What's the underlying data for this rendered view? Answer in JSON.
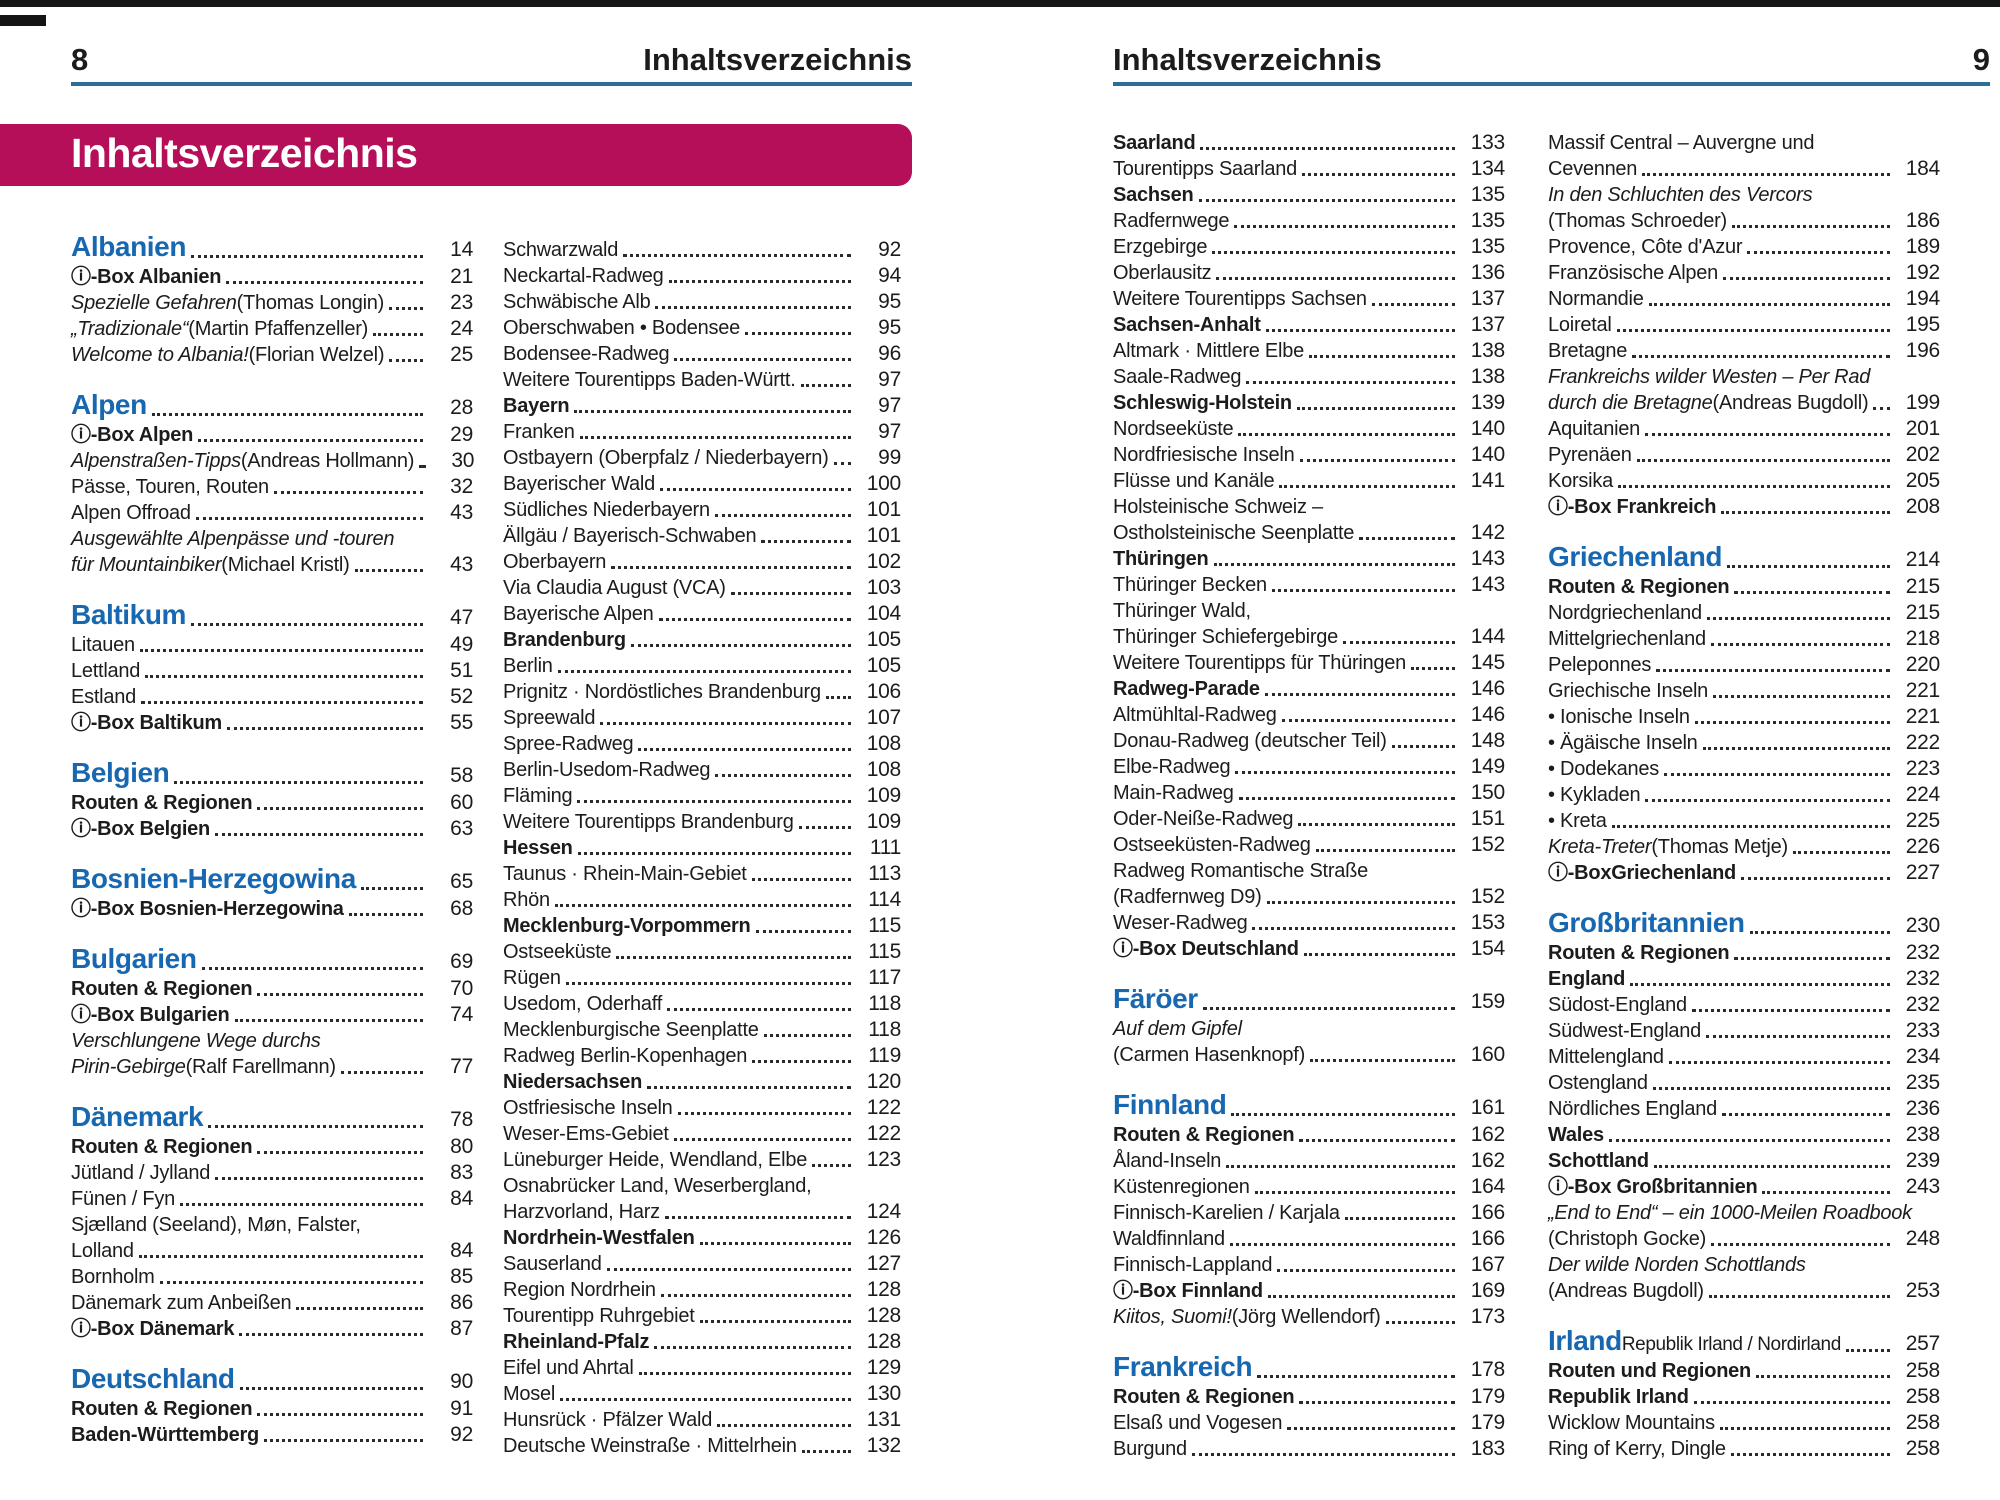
{
  "colors": {
    "banner_bg": "#b60f5a",
    "heading_blue": "#1767b1",
    "rule_blue": "#2e6d94",
    "text": "#1c1c1c"
  },
  "page_left": {
    "page_number": "8",
    "running_header": "Inhaltsverzeichnis",
    "banner_title": "Inhaltsverzeichnis",
    "columns": [
      [
        {
          "s": "h",
          "t": "Albanien",
          "p": "14"
        },
        {
          "s": "b",
          "t": "ⓘ-Box Albanien",
          "p": "21"
        },
        {
          "s": "i",
          "t": "Spezielle Gefahren",
          "t2": " (Thomas Longin)",
          "p": "23"
        },
        {
          "s": "i",
          "t": "„Tradizionale“",
          "t2": " (Martin Pfaffenzeller)",
          "p": "24"
        },
        {
          "s": "i",
          "t": "Welcome to Albania!",
          "t2": " (Florian Welzel)",
          "p": "25"
        },
        {
          "s": "h",
          "t": "Alpen",
          "p": "28"
        },
        {
          "s": "b",
          "t": "ⓘ-Box Alpen",
          "p": "29"
        },
        {
          "s": "i",
          "t": "Alpenstraßen-Tipps",
          "t2": " (Andreas Hollmann)",
          "p": "30"
        },
        {
          "s": "n",
          "t": "Pässe, Touren, Routen",
          "p": "32"
        },
        {
          "s": "n",
          "t": "Alpen Offroad",
          "p": "43"
        },
        {
          "s": "i",
          "t": "Ausgewählte Alpenpässe und -touren",
          "p": null
        },
        {
          "s": "i",
          "t": "für Mountainbiker",
          "t2": " (Michael Kristl)",
          "p": "43"
        },
        {
          "s": "h",
          "t": "Baltikum",
          "p": "47"
        },
        {
          "s": "n",
          "t": "Litauen",
          "p": "49"
        },
        {
          "s": "n",
          "t": "Lettland",
          "p": "51"
        },
        {
          "s": "n",
          "t": "Estland",
          "p": "52"
        },
        {
          "s": "b",
          "t": "ⓘ-Box Baltikum",
          "p": "55"
        },
        {
          "s": "h",
          "t": "Belgien",
          "p": "58"
        },
        {
          "s": "b",
          "t": "Routen & Regionen",
          "p": "60"
        },
        {
          "s": "b",
          "t": "ⓘ-Box Belgien",
          "p": "63"
        },
        {
          "s": "h",
          "t": "Bosnien-Herzegowina",
          "p": "65"
        },
        {
          "s": "b",
          "t": "ⓘ-Box Bosnien-Herzegowina",
          "p": "68"
        },
        {
          "s": "h",
          "t": "Bulgarien",
          "p": "69"
        },
        {
          "s": "b",
          "t": "Routen & Regionen",
          "p": "70"
        },
        {
          "s": "b",
          "t": "ⓘ-Box Bulgarien",
          "p": "74"
        },
        {
          "s": "i",
          "t": "Verschlungene Wege durchs",
          "p": null
        },
        {
          "s": "i",
          "t": "Pirin-Gebirge",
          "t2": " (Ralf Farellmann)",
          "p": "77"
        },
        {
          "s": "h",
          "t": "Dänemark",
          "p": "78"
        },
        {
          "s": "b",
          "t": "Routen & Regionen",
          "p": "80"
        },
        {
          "s": "n",
          "t": "Jütland / Jylland",
          "p": "83"
        },
        {
          "s": "n",
          "t": "Fünen / Fyn",
          "p": "84"
        },
        {
          "s": "n",
          "t": "Sjælland (Seeland), Møn, Falster,",
          "p": null
        },
        {
          "s": "n",
          "t": "Lolland",
          "p": "84"
        },
        {
          "s": "n",
          "t": "Bornholm",
          "p": "85"
        },
        {
          "s": "n",
          "t": "Dänemark zum Anbeißen",
          "p": "86"
        },
        {
          "s": "b",
          "t": "ⓘ-Box Dänemark",
          "p": "87"
        },
        {
          "s": "h",
          "t": "Deutschland",
          "p": "90"
        },
        {
          "s": "b",
          "t": "Routen & Regionen",
          "p": "91"
        },
        {
          "s": "b",
          "t": "Baden-Württemberg",
          "p": "92"
        }
      ],
      [
        {
          "s": "n",
          "t": "Schwarzwald",
          "p": "92"
        },
        {
          "s": "n",
          "t": "Neckartal-Radweg",
          "p": "94"
        },
        {
          "s": "n",
          "t": "Schwäbische Alb",
          "p": "95"
        },
        {
          "s": "n",
          "t": "Oberschwaben • Bodensee",
          "p": "95"
        },
        {
          "s": "n",
          "t": "Bodensee-Radweg",
          "p": "96"
        },
        {
          "s": "n",
          "t": "Weitere Tourentipps Baden-Württ.",
          "p": "97"
        },
        {
          "s": "b",
          "t": "Bayern",
          "p": "97"
        },
        {
          "s": "n",
          "t": "Franken",
          "p": "97"
        },
        {
          "s": "n",
          "t": "Ostbayern (Oberpfalz / Niederbayern)",
          "p": "99"
        },
        {
          "s": "n",
          "t": "Bayerischer Wald",
          "p": "100"
        },
        {
          "s": "n",
          "t": "Südliches Niederbayern",
          "p": "101"
        },
        {
          "s": "n",
          "t": "Ällgäu / Bayerisch-Schwaben",
          "p": "101"
        },
        {
          "s": "n",
          "t": "Oberbayern",
          "p": "102"
        },
        {
          "s": "n",
          "t": "Via Claudia August (VCA)",
          "p": "103"
        },
        {
          "s": "n",
          "t": "Bayerische Alpen",
          "p": "104"
        },
        {
          "s": "b",
          "t": "Brandenburg",
          "p": "105"
        },
        {
          "s": "n",
          "t": "Berlin",
          "p": "105"
        },
        {
          "s": "n",
          "t": "Prignitz · Nordöstliches Brandenburg",
          "p": "106"
        },
        {
          "s": "n",
          "t": "Spreewald",
          "p": "107"
        },
        {
          "s": "n",
          "t": "Spree-Radweg",
          "p": "108"
        },
        {
          "s": "n",
          "t": "Berlin-Usedom-Radweg",
          "p": "108"
        },
        {
          "s": "n",
          "t": "Fläming",
          "p": "109"
        },
        {
          "s": "n",
          "t": "Weitere Tourentipps Brandenburg",
          "p": "109"
        },
        {
          "s": "b",
          "t": "Hessen",
          "p": "111"
        },
        {
          "s": "n",
          "t": "Taunus · Rhein-Main-Gebiet",
          "p": "113"
        },
        {
          "s": "n",
          "t": "Rhön",
          "p": "114"
        },
        {
          "s": "b",
          "t": "Mecklenburg-Vorpommern",
          "p": "115"
        },
        {
          "s": "n",
          "t": "Ostseeküste",
          "p": "115"
        },
        {
          "s": "n",
          "t": "Rügen",
          "p": "117"
        },
        {
          "s": "n",
          "t": "Usedom, Oderhaff",
          "p": "118"
        },
        {
          "s": "n",
          "t": "Mecklenburgische Seenplatte",
          "p": "118"
        },
        {
          "s": "n",
          "t": "Radweg Berlin-Kopenhagen",
          "p": "119"
        },
        {
          "s": "b",
          "t": "Niedersachsen",
          "p": "120"
        },
        {
          "s": "n",
          "t": "Ostfriesische Inseln",
          "p": "122"
        },
        {
          "s": "n",
          "t": "Weser-Ems-Gebiet",
          "p": "122"
        },
        {
          "s": "n",
          "t": "Lüneburger Heide, Wendland, Elbe",
          "p": "123"
        },
        {
          "s": "n",
          "t": "Osnabrücker Land, Weserbergland,",
          "p": null
        },
        {
          "s": "n",
          "t": "Harzvorland, Harz",
          "p": "124"
        },
        {
          "s": "b",
          "t": "Nordrhein-Westfalen",
          "p": "126"
        },
        {
          "s": "n",
          "t": "Sauserland",
          "p": "127"
        },
        {
          "s": "n",
          "t": "Region Nordrhein",
          "p": "128"
        },
        {
          "s": "n",
          "t": "Tourentipp Ruhrgebiet",
          "p": "128"
        },
        {
          "s": "b",
          "t": "Rheinland-Pfalz",
          "p": "128"
        },
        {
          "s": "n",
          "t": "Eifel und Ahrtal",
          "p": "129"
        },
        {
          "s": "n",
          "t": "Mosel",
          "p": "130"
        },
        {
          "s": "n",
          "t": "Hunsrück · Pfälzer Wald",
          "p": "131"
        },
        {
          "s": "n",
          "t": "Deutsche Weinstraße · Mittelrhein",
          "p": "132"
        }
      ]
    ]
  },
  "page_right": {
    "page_number": "9",
    "running_header": "Inhaltsverzeichnis",
    "columns": [
      [
        {
          "s": "b",
          "t": "Saarland",
          "p": "133"
        },
        {
          "s": "n",
          "t": "Tourentipps Saarland",
          "p": "134"
        },
        {
          "s": "b",
          "t": "Sachsen",
          "p": "135"
        },
        {
          "s": "n",
          "t": "Radfernwege",
          "p": "135"
        },
        {
          "s": "n",
          "t": "Erzgebirge",
          "p": "135"
        },
        {
          "s": "n",
          "t": "Oberlausitz",
          "p": "136"
        },
        {
          "s": "n",
          "t": "Weitere Tourentipps Sachsen",
          "p": "137"
        },
        {
          "s": "b",
          "t": "Sachsen-Anhalt",
          "p": "137"
        },
        {
          "s": "n",
          "t": "Altmark · Mittlere Elbe",
          "p": "138"
        },
        {
          "s": "n",
          "t": "Saale-Radweg",
          "p": "138"
        },
        {
          "s": "b",
          "t": "Schleswig-Holstein",
          "p": "139"
        },
        {
          "s": "n",
          "t": "Nordseeküste",
          "p": "140"
        },
        {
          "s": "n",
          "t": "Nordfriesische Inseln",
          "p": "140"
        },
        {
          "s": "n",
          "t": "Flüsse und Kanäle",
          "p": "141"
        },
        {
          "s": "n",
          "t": "Holsteinische Schweiz –",
          "p": null
        },
        {
          "s": "n",
          "t": "Ostholsteinische Seenplatte",
          "p": "142"
        },
        {
          "s": "b",
          "t": "Thüringen",
          "p": "143"
        },
        {
          "s": "n",
          "t": "Thüringer Becken",
          "p": "143"
        },
        {
          "s": "n",
          "t": "Thüringer Wald,",
          "p": null
        },
        {
          "s": "n",
          "t": "Thüringer Schiefergebirge",
          "p": "144"
        },
        {
          "s": "n",
          "t": "Weitere Tourentipps für Thüringen",
          "p": "145"
        },
        {
          "s": "b",
          "t": "Radweg-Parade",
          "p": "146"
        },
        {
          "s": "n",
          "t": "Altmühltal-Radweg",
          "p": "146"
        },
        {
          "s": "n",
          "t": "Donau-Radweg (deutscher Teil)",
          "p": "148"
        },
        {
          "s": "n",
          "t": "Elbe-Radweg",
          "p": "149"
        },
        {
          "s": "n",
          "t": "Main-Radweg",
          "p": "150"
        },
        {
          "s": "n",
          "t": "Oder-Neiße-Radweg",
          "p": "151"
        },
        {
          "s": "n",
          "t": "Ostseeküsten-Radweg",
          "p": "152"
        },
        {
          "s": "n",
          "t": "Radweg Romantische Straße",
          "p": null
        },
        {
          "s": "n",
          "t": "(Radfernweg D9)",
          "p": "152"
        },
        {
          "s": "n",
          "t": "Weser-Radweg",
          "p": "153"
        },
        {
          "s": "b",
          "t": "ⓘ-Box Deutschland",
          "p": "154"
        },
        {
          "s": "h",
          "t": "Färöer",
          "p": "159"
        },
        {
          "s": "i",
          "t": "Auf dem Gipfel",
          "p": null
        },
        {
          "s": "n",
          "t": "(Carmen Hasenknopf)",
          "p": "160"
        },
        {
          "s": "h",
          "t": "Finnland",
          "p": "161"
        },
        {
          "s": "b",
          "t": "Routen & Regionen",
          "p": "162"
        },
        {
          "s": "n",
          "t": "Åland-Inseln",
          "p": "162"
        },
        {
          "s": "n",
          "t": "Küstenregionen",
          "p": "164"
        },
        {
          "s": "n",
          "t": "Finnisch-Karelien / Karjala",
          "p": "166"
        },
        {
          "s": "n",
          "t": "Waldfinnland",
          "p": "166"
        },
        {
          "s": "n",
          "t": "Finnisch-Lappland",
          "p": "167"
        },
        {
          "s": "b",
          "t": "ⓘ-Box Finnland",
          "p": "169"
        },
        {
          "s": "i",
          "t": "Kiitos, Suomi!",
          "t2": " (Jörg Wellendorf)",
          "p": "173"
        },
        {
          "s": "h",
          "t": "Frankreich",
          "p": "178"
        },
        {
          "s": "b",
          "t": "Routen & Regionen",
          "p": "179"
        },
        {
          "s": "n",
          "t": "Elsaß und Vogesen",
          "p": "179"
        },
        {
          "s": "n",
          "t": "Burgund",
          "p": "183"
        }
      ],
      [
        {
          "s": "n",
          "t": "Massif Central – Auvergne und",
          "p": null
        },
        {
          "s": "n",
          "t": "Cevennen",
          "p": "184"
        },
        {
          "s": "i",
          "t": "In den Schluchten des Vercors",
          "p": null
        },
        {
          "s": "n",
          "t": "(Thomas Schroeder)",
          "p": "186"
        },
        {
          "s": "n",
          "t": "Provence, Côte d'Azur",
          "p": "189"
        },
        {
          "s": "n",
          "t": "Französische Alpen",
          "p": "192"
        },
        {
          "s": "n",
          "t": "Normandie",
          "p": "194"
        },
        {
          "s": "n",
          "t": "Loiretal",
          "p": "195"
        },
        {
          "s": "n",
          "t": "Bretagne",
          "p": "196"
        },
        {
          "s": "i",
          "t": "Frankreichs wilder Westen – Per Rad",
          "p": null
        },
        {
          "s": "i",
          "t": "durch die Bretagne",
          "t2": " (Andreas Bugdoll)",
          "p": "199"
        },
        {
          "s": "n",
          "t": "Aquitanien",
          "p": "201"
        },
        {
          "s": "n",
          "t": "Pyrenäen",
          "p": "202"
        },
        {
          "s": "n",
          "t": "Korsika",
          "p": "205"
        },
        {
          "s": "b",
          "t": "ⓘ-Box Frankreich",
          "p": "208"
        },
        {
          "s": "h",
          "t": "Griechenland",
          "p": "214"
        },
        {
          "s": "b",
          "t": "Routen & Regionen",
          "p": "215"
        },
        {
          "s": "n",
          "t": "Nordgriechenland",
          "p": "215"
        },
        {
          "s": "n",
          "t": "Mittelgriechenland",
          "p": "218"
        },
        {
          "s": "n",
          "t": "Peleponnes",
          "p": "220"
        },
        {
          "s": "n",
          "t": "Griechische Inseln",
          "p": "221"
        },
        {
          "s": "n",
          "t": "• Ionische Inseln",
          "p": "221"
        },
        {
          "s": "n",
          "t": "• Ägäische Inseln",
          "p": "222"
        },
        {
          "s": "n",
          "t": "• Dodekanes",
          "p": "223"
        },
        {
          "s": "n",
          "t": "• Kykladen",
          "p": "224"
        },
        {
          "s": "n",
          "t": "• Kreta",
          "p": "225"
        },
        {
          "s": "i",
          "t": "Kreta-Treter",
          "t2": " (Thomas Metje)",
          "p": "226"
        },
        {
          "s": "b",
          "t": "ⓘ-BoxGriechenland",
          "p": "227"
        },
        {
          "s": "h",
          "t": "Großbritannien",
          "p": "230"
        },
        {
          "s": "b",
          "t": "Routen & Regionen",
          "p": "232"
        },
        {
          "s": "b",
          "t": "England",
          "p": "232"
        },
        {
          "s": "n",
          "t": "Südost-England",
          "p": "232"
        },
        {
          "s": "n",
          "t": "Südwest-England",
          "p": "233"
        },
        {
          "s": "n",
          "t": "Mittelengland",
          "p": "234"
        },
        {
          "s": "n",
          "t": "Ostengland",
          "p": "235"
        },
        {
          "s": "n",
          "t": "Nördliches England",
          "p": "236"
        },
        {
          "s": "b",
          "t": "Wales",
          "p": "238"
        },
        {
          "s": "b",
          "t": "Schottland",
          "p": "239"
        },
        {
          "s": "b",
          "t": "ⓘ-Box Großbritannien",
          "p": "243"
        },
        {
          "s": "i",
          "t": "„End to End“ – ein 1000-Meilen Roadbook",
          "p": null
        },
        {
          "s": "n",
          "t": "(Christoph Gocke)",
          "p": "248"
        },
        {
          "s": "i",
          "t": "Der wilde Norden Schottlands",
          "p": null
        },
        {
          "s": "n",
          "t": "(Andreas Bugdoll)",
          "p": "253"
        },
        {
          "s": "h",
          "t": "Irland",
          "t2": " Republik Irland / Nordirland",
          "p": "257"
        },
        {
          "s": "b",
          "t": "Routen und Regionen",
          "p": "258"
        },
        {
          "s": "b",
          "t": "Republik Irland",
          "p": "258"
        },
        {
          "s": "n",
          "t": "Wicklow Mountains",
          "p": "258"
        },
        {
          "s": "n",
          "t": "Ring of Kerry, Dingle",
          "p": "258"
        }
      ]
    ]
  }
}
